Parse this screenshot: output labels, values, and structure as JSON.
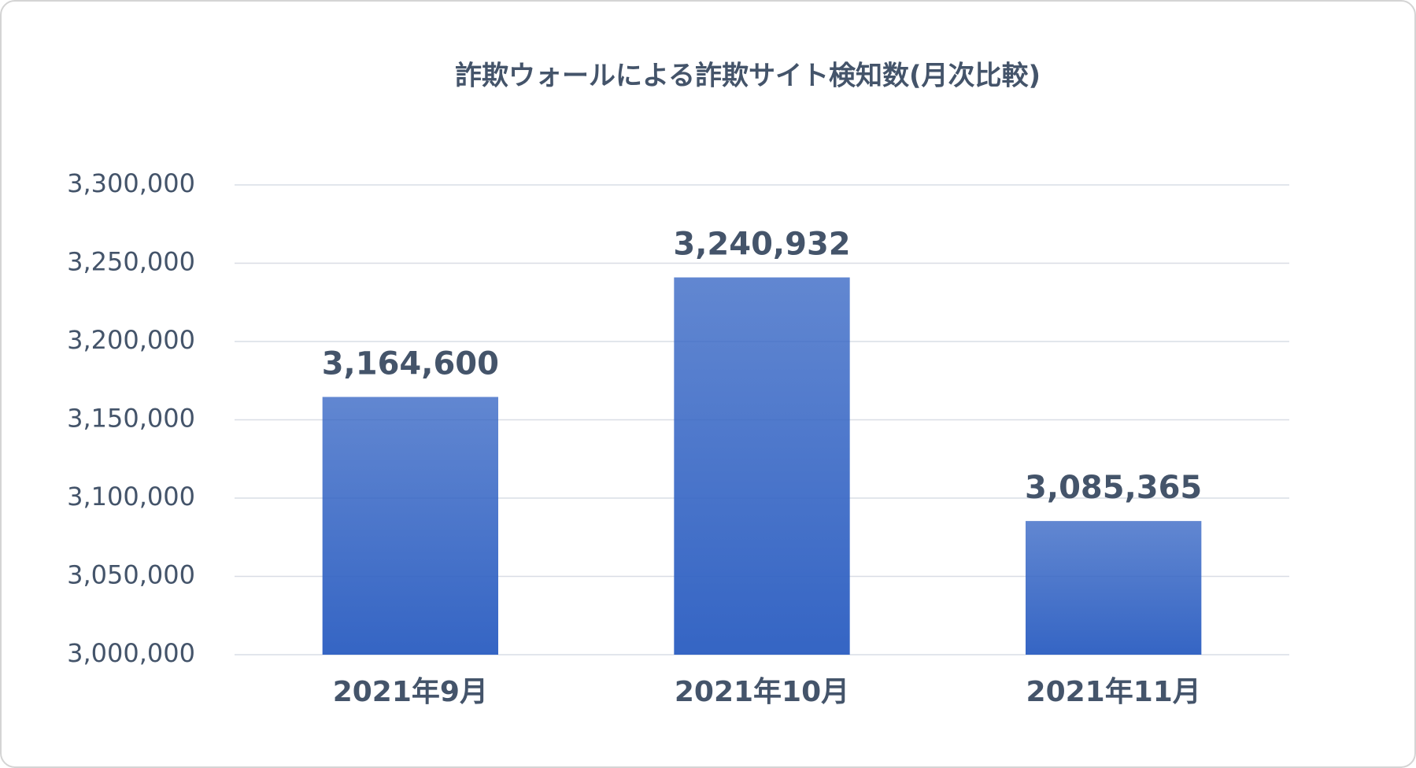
{
  "chart_data": {
    "type": "bar",
    "title": "詐欺ウォールによる詐欺サイト検知数(月次比較)",
    "categories": [
      "2021年9月",
      "2021年10月",
      "2021年11月"
    ],
    "values": [
      3164600,
      3240932,
      3085365
    ],
    "value_labels": [
      "3,164,600",
      "3,240,932",
      "3,085,365"
    ],
    "color": "#3565c4",
    "ylim": [
      3000000,
      3300000
    ],
    "yticks": [
      {
        "value": 3000000,
        "label": "3,000,000"
      },
      {
        "value": 3050000,
        "label": "3,050,000"
      },
      {
        "value": 3100000,
        "label": "3,100,000"
      },
      {
        "value": 3150000,
        "label": "3,150,000"
      },
      {
        "value": 3200000,
        "label": "3,200,000"
      },
      {
        "value": 3250000,
        "label": "3,250,000"
      },
      {
        "value": 3300000,
        "label": "3,300,000"
      }
    ],
    "grid": true
  }
}
